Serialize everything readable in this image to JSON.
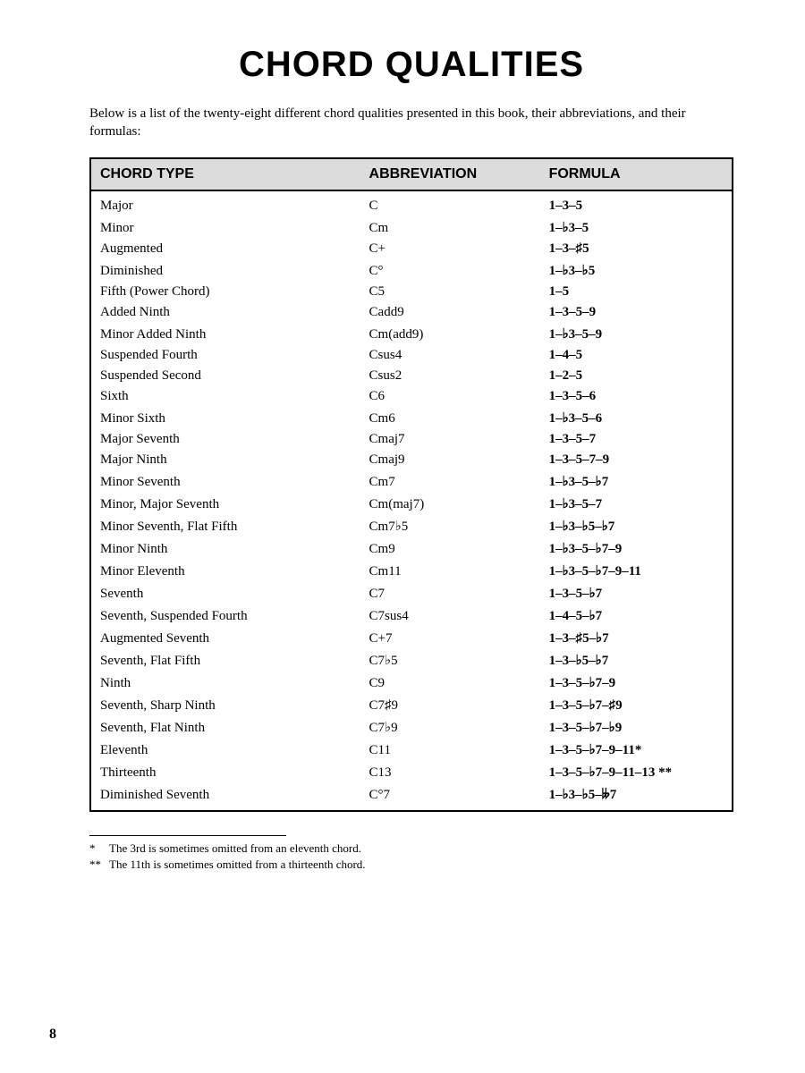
{
  "title": "CHORD QUALITIES",
  "intro": "Below is a list of the twenty-eight different chord qualities presented in this book, their abbreviations, and their formulas:",
  "table": {
    "headers": [
      "CHORD TYPE",
      "ABBREVIATION",
      "FORMULA"
    ],
    "rows": [
      {
        "type": "Major",
        "abbr": "C",
        "formula": "1–3–5"
      },
      {
        "type": "Minor",
        "abbr": "Cm",
        "formula": "1–♭3–5"
      },
      {
        "type": "Augmented",
        "abbr": "C+",
        "formula": "1–3–♯5"
      },
      {
        "type": "Diminished",
        "abbr": "C°",
        "formula": "1–♭3–♭5"
      },
      {
        "type": "Fifth (Power Chord)",
        "abbr": "C5",
        "formula": "1–5"
      },
      {
        "type": "Added Ninth",
        "abbr": "Cadd9",
        "formula": "1–3–5–9"
      },
      {
        "type": "Minor Added Ninth",
        "abbr": "Cm(add9)",
        "formula": "1–♭3–5–9"
      },
      {
        "type": "Suspended Fourth",
        "abbr": "Csus4",
        "formula": "1–4–5"
      },
      {
        "type": "Suspended Second",
        "abbr": "Csus2",
        "formula": "1–2–5"
      },
      {
        "type": "Sixth",
        "abbr": "C6",
        "formula": "1–3–5–6"
      },
      {
        "type": "Minor Sixth",
        "abbr": "Cm6",
        "formula": "1–♭3–5–6"
      },
      {
        "type": "Major Seventh",
        "abbr": "Cmaj7",
        "formula": "1–3–5–7"
      },
      {
        "type": "Major Ninth",
        "abbr": "Cmaj9",
        "formula": "1–3–5–7–9"
      },
      {
        "type": "Minor Seventh",
        "abbr": "Cm7",
        "formula": "1–♭3–5–♭7"
      },
      {
        "type": "Minor, Major Seventh",
        "abbr": "Cm(maj7)",
        "formula": "1–♭3–5–7"
      },
      {
        "type": "Minor Seventh, Flat Fifth",
        "abbr": "Cm7♭5",
        "formula": "1–♭3–♭5–♭7"
      },
      {
        "type": "Minor Ninth",
        "abbr": "Cm9",
        "formula": "1–♭3–5–♭7–9"
      },
      {
        "type": "Minor Eleventh",
        "abbr": "Cm11",
        "formula": "1–♭3–5–♭7–9–11"
      },
      {
        "type": "Seventh",
        "abbr": "C7",
        "formula": "1–3–5–♭7"
      },
      {
        "type": "Seventh, Suspended Fourth",
        "abbr": "C7sus4",
        "formula": "1–4–5–♭7"
      },
      {
        "type": "Augmented Seventh",
        "abbr": "C+7",
        "formula": "1–3–♯5–♭7"
      },
      {
        "type": "Seventh, Flat Fifth",
        "abbr": "C7♭5",
        "formula": "1–3–♭5–♭7"
      },
      {
        "type": "Ninth",
        "abbr": "C9",
        "formula": "1–3–5–♭7–9"
      },
      {
        "type": "Seventh, Sharp Ninth",
        "abbr": "C7♯9",
        "formula": "1–3–5–♭7–♯9"
      },
      {
        "type": "Seventh, Flat Ninth",
        "abbr": "C7♭9",
        "formula": "1–3–5–♭7–♭9"
      },
      {
        "type": "Eleventh",
        "abbr": "C11",
        "formula": "1–3–5–♭7–9–11*"
      },
      {
        "type": "Thirteenth",
        "abbr": "C13",
        "formula": "1–3–5–♭7–9–11–13 **"
      },
      {
        "type": "Diminished Seventh",
        "abbr": "C°7",
        "formula": "1–♭3–♭5–𝄫7"
      }
    ]
  },
  "footnotes": [
    {
      "mark": "*",
      "text": "The 3rd is sometimes omitted from an eleventh chord."
    },
    {
      "mark": "**",
      "text": "The 11th is sometimes omitted from a thirteenth chord."
    }
  ],
  "page_number": "8"
}
